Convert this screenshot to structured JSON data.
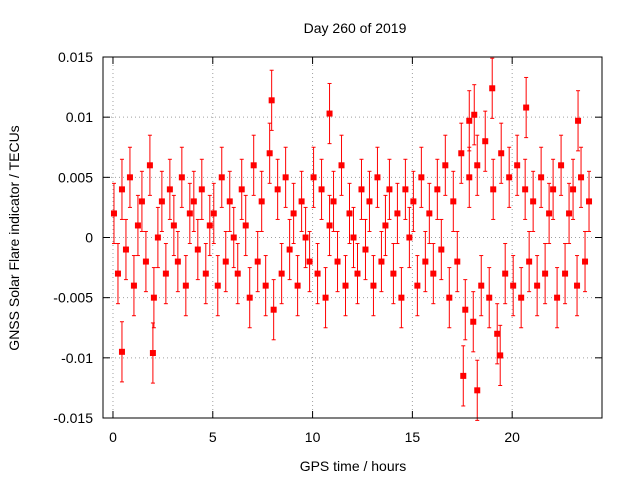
{
  "chart_data": {
    "type": "scatter",
    "title": "Day 260 of 2019",
    "xlabel": "GPS time / hours",
    "ylabel": "GNSS Solar Flare indicator / TECUs",
    "xlim": [
      -0.5,
      24.5
    ],
    "ylim": [
      -0.015,
      0.015
    ],
    "xticks": [
      0,
      5,
      10,
      15,
      20
    ],
    "xtick_labels": [
      "0",
      "5",
      "10",
      "15",
      "20"
    ],
    "yticks": [
      -0.015,
      -0.01,
      -0.005,
      0,
      0.005,
      0.01,
      0.015
    ],
    "ytick_labels": [
      "-0.015",
      "-0.01",
      "-0.005",
      "0",
      "0.005",
      "0.01",
      "0.015"
    ],
    "grid": true,
    "marker": "square",
    "error_bars": true,
    "series_color": "#ff0000",
    "series": [
      {
        "name": "indicator",
        "x": [
          0.05,
          0.25,
          0.45,
          0.65,
          0.85,
          1.05,
          1.25,
          1.45,
          1.65,
          1.85,
          2.05,
          2.25,
          2.45,
          2.65,
          2.85,
          3.05,
          3.25,
          3.45,
          3.65,
          3.85,
          4.05,
          4.25,
          4.45,
          4.65,
          4.85,
          5.05,
          5.25,
          5.45,
          5.65,
          5.85,
          6.05,
          6.25,
          6.45,
          6.65,
          6.85,
          7.05,
          7.25,
          7.45,
          7.65,
          7.85,
          8.05,
          8.25,
          8.45,
          8.65,
          8.85,
          9.05,
          9.25,
          9.45,
          9.65,
          9.85,
          10.05,
          10.25,
          10.45,
          10.65,
          10.85,
          11.05,
          11.25,
          11.45,
          11.65,
          11.85,
          12.05,
          12.25,
          12.45,
          12.65,
          12.85,
          13.05,
          13.25,
          13.45,
          13.65,
          13.85,
          14.05,
          14.25,
          14.45,
          14.65,
          14.85,
          15.05,
          15.25,
          15.45,
          15.65,
          15.85,
          16.05,
          16.25,
          16.45,
          16.65,
          16.85,
          17.05,
          17.25,
          17.45,
          17.65,
          17.85,
          18.05,
          18.25,
          18.45,
          18.65,
          18.85,
          19.05,
          19.25,
          19.45,
          19.65,
          19.85,
          20.05,
          20.25,
          20.45,
          20.65,
          20.85,
          21.05,
          21.25,
          21.45,
          21.65,
          21.85,
          22.05,
          22.25,
          22.45,
          22.65,
          22.85,
          23.05,
          23.25,
          23.45,
          23.65,
          23.85,
          0.45,
          2.0,
          7.95,
          10.85,
          17.55,
          18.1,
          18.25,
          19.0,
          20.7,
          23.3,
          19.4,
          17.85
        ],
        "y": [
          0.002,
          -0.003,
          0.004,
          -0.001,
          0.005,
          -0.004,
          0.001,
          0.003,
          -0.002,
          0.006,
          -0.005,
          0.0,
          0.003,
          -0.003,
          0.004,
          0.001,
          -0.002,
          0.005,
          -0.004,
          0.002,
          0.003,
          -0.001,
          0.004,
          -0.003,
          0.001,
          0.002,
          -0.004,
          0.005,
          -0.002,
          0.003,
          0.0,
          -0.003,
          0.004,
          0.001,
          -0.005,
          0.006,
          -0.002,
          0.003,
          -0.004,
          0.007,
          -0.006,
          0.004,
          -0.003,
          0.005,
          -0.001,
          0.002,
          -0.004,
          0.003,
          0.0,
          -0.002,
          0.005,
          -0.003,
          0.004,
          -0.005,
          0.001,
          0.003,
          -0.002,
          0.006,
          -0.004,
          0.002,
          0.0,
          -0.003,
          0.004,
          -0.001,
          0.003,
          -0.004,
          0.005,
          -0.002,
          0.001,
          0.004,
          -0.003,
          0.002,
          -0.005,
          0.004,
          0.0,
          0.003,
          -0.004,
          0.005,
          -0.002,
          0.002,
          -0.003,
          0.004,
          -0.001,
          0.006,
          -0.005,
          0.003,
          -0.002,
          0.007,
          -0.006,
          0.005,
          -0.007,
          0.006,
          -0.004,
          0.008,
          -0.005,
          0.004,
          -0.008,
          0.007,
          -0.003,
          0.005,
          -0.004,
          0.006,
          -0.005,
          0.004,
          -0.002,
          0.003,
          -0.004,
          0.005,
          -0.003,
          0.002,
          0.004,
          -0.005,
          0.006,
          -0.003,
          0.002,
          0.004,
          -0.004,
          0.005,
          -0.002,
          0.003,
          -0.0095,
          -0.0096,
          0.0114,
          0.0103,
          -0.0115,
          0.0102,
          -0.0127,
          0.0124,
          0.0108,
          0.0097,
          -0.0098,
          0.0097
        ],
        "err": [
          0.0025,
          0.0025,
          0.0025,
          0.0025,
          0.0025,
          0.0025,
          0.0025,
          0.0025,
          0.0025,
          0.0025,
          0.0025,
          0.0025,
          0.0025,
          0.0025,
          0.0025,
          0.0025,
          0.0025,
          0.0025,
          0.0025,
          0.0025,
          0.0025,
          0.0025,
          0.0025,
          0.0025,
          0.0025,
          0.0025,
          0.0025,
          0.0025,
          0.0025,
          0.0025,
          0.0025,
          0.0025,
          0.0025,
          0.0025,
          0.0025,
          0.0025,
          0.0025,
          0.0025,
          0.0025,
          0.0025,
          0.0025,
          0.0025,
          0.0025,
          0.0025,
          0.0025,
          0.0025,
          0.0025,
          0.0025,
          0.0025,
          0.0025,
          0.0025,
          0.0025,
          0.0025,
          0.0025,
          0.0025,
          0.0025,
          0.0025,
          0.0025,
          0.0025,
          0.0025,
          0.0025,
          0.0025,
          0.0025,
          0.0025,
          0.0025,
          0.0025,
          0.0025,
          0.0025,
          0.0025,
          0.0025,
          0.0025,
          0.0025,
          0.0025,
          0.0025,
          0.0025,
          0.0025,
          0.0025,
          0.0025,
          0.0025,
          0.0025,
          0.0025,
          0.0025,
          0.0025,
          0.0025,
          0.0025,
          0.0025,
          0.0025,
          0.0025,
          0.0025,
          0.0025,
          0.0025,
          0.0025,
          0.0025,
          0.0025,
          0.0025,
          0.0025,
          0.0025,
          0.0025,
          0.0025,
          0.0025,
          0.0025,
          0.0025,
          0.0025,
          0.0025,
          0.0025,
          0.0025,
          0.0025,
          0.0025,
          0.0025,
          0.0025,
          0.0025,
          0.0025,
          0.0025,
          0.0025,
          0.0025,
          0.0025,
          0.0025,
          0.0025,
          0.0025,
          0.0025,
          0.0025,
          0.0025,
          0.0025,
          0.0025,
          0.0025,
          0.0025,
          0.0025,
          0.0025,
          0.0025,
          0.0025,
          0.0025,
          0.0025
        ]
      }
    ]
  }
}
